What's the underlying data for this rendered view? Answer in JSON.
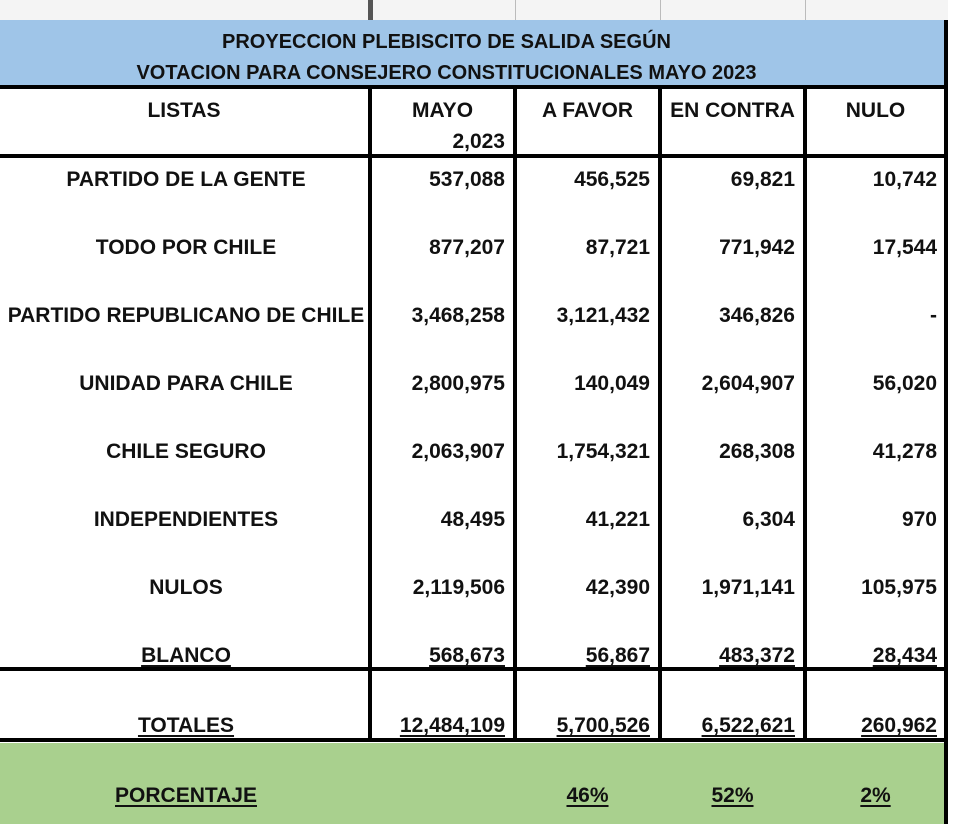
{
  "title": {
    "line1": "PROYECCION PLEBISCITO DE SALIDA SEGÚN",
    "line2": "VOTACION PARA CONSEJERO CONSTITUCIONALES MAYO 2023"
  },
  "headers": {
    "listas": "LISTAS",
    "mayo_line1": "MAYO",
    "mayo_line2": "2,023",
    "a_favor": "A FAVOR",
    "en_contra": "EN CONTRA",
    "nulo": "NULO"
  },
  "rows": [
    {
      "lista": "PARTIDO DE LA GENTE",
      "mayo": "537,088",
      "a_favor": "456,525",
      "en_contra": "69,821",
      "nulo": "10,742"
    },
    {
      "lista": "TODO POR CHILE",
      "mayo": "877,207",
      "a_favor": "87,721",
      "en_contra": "771,942",
      "nulo": "17,544"
    },
    {
      "lista": "PARTIDO REPUBLICANO DE CHILE",
      "mayo": "3,468,258",
      "a_favor": "3,121,432",
      "en_contra": "346,826",
      "nulo": "-"
    },
    {
      "lista": "UNIDAD PARA CHILE",
      "mayo": "2,800,975",
      "a_favor": "140,049",
      "en_contra": "2,604,907",
      "nulo": "56,020"
    },
    {
      "lista": "CHILE SEGURO",
      "mayo": "2,063,907",
      "a_favor": "1,754,321",
      "en_contra": "268,308",
      "nulo": "41,278"
    },
    {
      "lista": "INDEPENDIENTES",
      "mayo": "48,495",
      "a_favor": "41,221",
      "en_contra": "6,304",
      "nulo": "970"
    },
    {
      "lista": "NULOS",
      "mayo": "2,119,506",
      "a_favor": "42,390",
      "en_contra": "1,971,141",
      "nulo": "105,975"
    },
    {
      "lista": "BLANCO",
      "mayo": "568,673",
      "a_favor": "56,867",
      "en_contra": "483,372",
      "nulo": "28,434"
    }
  ],
  "totals": {
    "lista": "TOTALES",
    "mayo": "12,484,109",
    "a_favor": "5,700,526",
    "en_contra": "6,522,621",
    "nulo": "260,962"
  },
  "percentage": {
    "lista": "PORCENTAJE",
    "a_favor": "46%",
    "en_contra": "52%",
    "nulo": "2%"
  },
  "colors": {
    "title_bg": "#9fc5e8",
    "percentage_bg": "#a9d08e",
    "grid": "#000000"
  }
}
